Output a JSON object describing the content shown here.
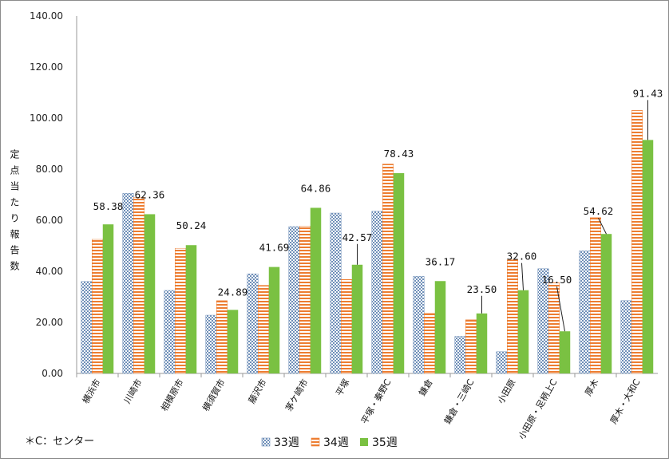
{
  "chart_data": {
    "type": "bar",
    "title": "",
    "xlabel": "",
    "ylabel": "定点当たり報告数",
    "ylim": [
      0,
      140
    ],
    "yticks": [
      "0.00",
      "20.00",
      "40.00",
      "60.00",
      "80.00",
      "100.00",
      "120.00",
      "140.00"
    ],
    "categories": [
      "横浜市",
      "川崎市",
      "相模原市",
      "横須賀市",
      "藤沢市",
      "茅ケ崎市",
      "平塚",
      "平塚・秦野C",
      "鎌倉",
      "鎌倉・三崎C",
      "小田原",
      "小田原・足柄上C",
      "厚木",
      "厚木・大和C"
    ],
    "series": [
      {
        "name": "33週",
        "values": [
          36.0,
          70.5,
          32.5,
          22.8,
          39.0,
          57.5,
          62.8,
          63.5,
          38.0,
          14.5,
          8.5,
          41.0,
          48.0,
          28.5
        ]
      },
      {
        "name": "34週",
        "values": [
          52.5,
          69.0,
          49.0,
          28.5,
          34.5,
          57.7,
          36.8,
          82.0,
          23.5,
          21.0,
          44.5,
          35.5,
          61.0,
          103.0
        ]
      },
      {
        "name": "35週",
        "values": [
          58.38,
          62.36,
          50.24,
          24.89,
          41.69,
          64.86,
          42.57,
          78.43,
          36.17,
          23.5,
          32.6,
          16.5,
          54.62,
          91.43
        ]
      }
    ],
    "data_labels": [
      "58.38",
      "62.36",
      "50.24",
      "24.89",
      "41.69",
      "64.86",
      "42.57",
      "78.43",
      "36.17",
      "23.50",
      "32.60",
      "16.50",
      "54.62",
      "91.43"
    ],
    "legend_position": "bottom",
    "grid": false
  },
  "colors": {
    "s33": "#6f8fb8",
    "s34": "#ed7d31",
    "s35": "#7ac142"
  },
  "footnote": "＊C：センター"
}
